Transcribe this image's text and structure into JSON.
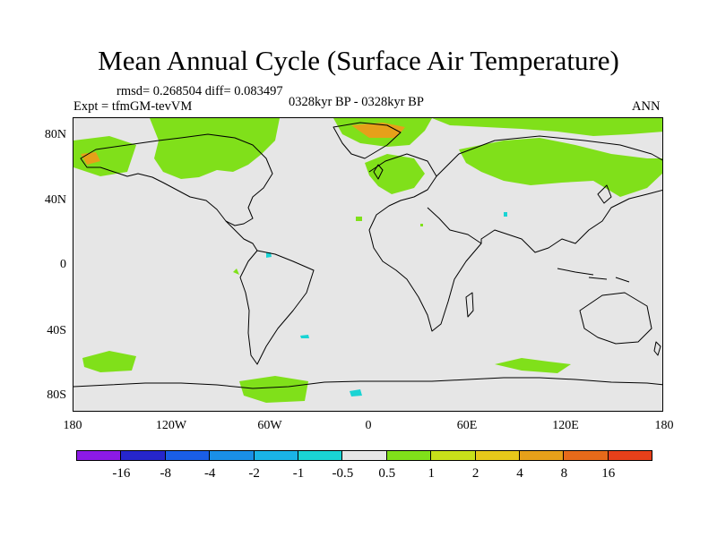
{
  "title": "Mean Annual Cycle (Surface Air Temperature)",
  "stats": {
    "line1": "rmsd= 0.268504 diff= 0.083497",
    "expt": "Expt = tfmGM-tevVM",
    "period": "0328kyr BP - 0328kyr BP",
    "season": "ANN"
  },
  "axes": {
    "y_labels": [
      "80N",
      "40N",
      "0",
      "40S",
      "80S"
    ],
    "x_labels": [
      "180",
      "120W",
      "60W",
      "0",
      "60E",
      "120E",
      "180"
    ]
  },
  "colorbar": {
    "colors": [
      "#8c1ae6",
      "#2626cc",
      "#1a5ee6",
      "#1a8fe6",
      "#1ab4e6",
      "#1ad4d4",
      "#e6e6e6",
      "#80e01a",
      "#c8e01a",
      "#e6c81a",
      "#e6a01a",
      "#e66a1a",
      "#e6401a"
    ],
    "labels": [
      "-16",
      "-8",
      "-4",
      "-2",
      "-1",
      "-0.5",
      "0.5",
      "1",
      "2",
      "4",
      "8",
      "16"
    ]
  },
  "map_colors": {
    "background": "#e6e6e6",
    "positive_1": "#80e01a",
    "positive_4": "#e6a01a",
    "negative_1": "#1ad4d4",
    "coast": "#000000"
  }
}
